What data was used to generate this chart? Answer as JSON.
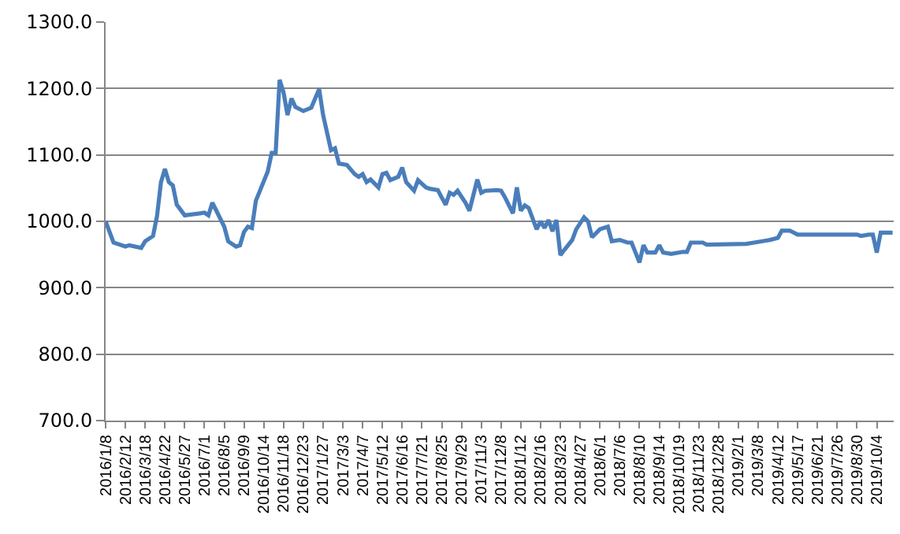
{
  "chart_data": {
    "type": "line",
    "x": [
      "2016-01-08",
      "2016-01-22",
      "2016-02-12",
      "2016-02-19",
      "2016-03-11",
      "2016-03-18",
      "2016-04-01",
      "2016-04-08",
      "2016-04-15",
      "2016-04-22",
      "2016-04-29",
      "2016-05-06",
      "2016-05-13",
      "2016-05-27",
      "2016-07-01",
      "2016-07-08",
      "2016-07-15",
      "2016-07-22",
      "2016-08-05",
      "2016-08-12",
      "2016-08-26",
      "2016-09-02",
      "2016-09-09",
      "2016-09-16",
      "2016-09-23",
      "2016-09-30",
      "2016-10-21",
      "2016-10-28",
      "2016-11-04",
      "2016-11-11",
      "2016-11-18",
      "2016-11-25",
      "2016-12-02",
      "2016-12-09",
      "2016-12-23",
      "2017-01-06",
      "2017-01-20",
      "2017-01-27",
      "2017-02-10",
      "2017-02-17",
      "2017-02-24",
      "2017-03-10",
      "2017-03-24",
      "2017-03-31",
      "2017-04-07",
      "2017-04-14",
      "2017-04-21",
      "2017-05-05",
      "2017-05-12",
      "2017-05-19",
      "2017-05-26",
      "2017-06-09",
      "2017-06-16",
      "2017-06-23",
      "2017-07-07",
      "2017-07-14",
      "2017-07-28",
      "2017-08-04",
      "2017-08-18",
      "2017-08-25",
      "2017-09-01",
      "2017-09-08",
      "2017-09-15",
      "2017-09-22",
      "2017-10-06",
      "2017-10-13",
      "2017-10-27",
      "2017-11-03",
      "2017-11-10",
      "2017-12-01",
      "2017-12-08",
      "2017-12-15",
      "2017-12-29",
      "2018-01-05",
      "2018-01-12",
      "2018-01-19",
      "2018-01-26",
      "2018-02-09",
      "2018-02-16",
      "2018-02-23",
      "2018-03-02",
      "2018-03-09",
      "2018-03-16",
      "2018-03-23",
      "2018-03-30",
      "2018-04-13",
      "2018-04-20",
      "2018-05-04",
      "2018-05-11",
      "2018-05-18",
      "2018-06-01",
      "2018-06-15",
      "2018-06-22",
      "2018-07-06",
      "2018-07-20",
      "2018-07-27",
      "2018-08-03",
      "2018-08-10",
      "2018-08-17",
      "2018-08-24",
      "2018-09-07",
      "2018-09-14",
      "2018-09-21",
      "2018-10-05",
      "2018-10-26",
      "2018-11-02",
      "2018-11-09",
      "2018-11-30",
      "2018-12-07",
      "2019-02-15",
      "2019-03-01",
      "2019-03-22",
      "2019-03-29",
      "2019-04-12",
      "2019-04-19",
      "2019-05-03",
      "2019-05-17",
      "2019-08-30",
      "2019-09-06",
      "2019-09-20",
      "2019-09-27",
      "2019-10-04",
      "2019-10-11",
      "2019-11-01"
    ],
    "series": [
      {
        "color": "#4a7ebb",
        "values": [
          1000,
          968,
          962,
          964,
          960,
          970,
          978,
          1008,
          1059,
          1079,
          1059,
          1054,
          1025,
          1009,
          1013,
          1009,
          1028,
          1016,
          992,
          970,
          962,
          964,
          984,
          992,
          990,
          1031,
          1075,
          1103,
          1103,
          1213,
          1194,
          1160,
          1185,
          1172,
          1166,
          1171,
          1199,
          1160,
          1107,
          1110,
          1087,
          1085,
          1071,
          1067,
          1071,
          1059,
          1063,
          1051,
          1071,
          1073,
          1062,
          1067,
          1081,
          1059,
          1046,
          1062,
          1051,
          1049,
          1047,
          1036,
          1025,
          1043,
          1040,
          1046,
          1028,
          1016,
          1063,
          1043,
          1046,
          1047,
          1046,
          1036,
          1012,
          1051,
          1016,
          1024,
          1020,
          988,
          1000,
          990,
          1002,
          985,
          1002,
          949,
          957,
          972,
          988,
          1006,
          1000,
          976,
          988,
          992,
          970,
          972,
          968,
          968,
          953,
          938,
          964,
          953,
          953,
          964,
          953,
          951,
          954,
          954,
          968,
          968,
          965,
          966,
          968,
          971,
          972,
          975,
          986,
          986,
          980,
          980,
          978,
          980,
          980,
          953,
          983,
          983
        ]
      }
    ],
    "xlim": [
      "2016-01-08",
      "2019-11-03"
    ],
    "xticks": [
      {
        "value": "2016-01-08",
        "label": "2016/1/8"
      },
      {
        "value": "2016-02-12",
        "label": "2016/2/12"
      },
      {
        "value": "2016-03-18",
        "label": "2016/3/18"
      },
      {
        "value": "2016-04-22",
        "label": "2016/4/22"
      },
      {
        "value": "2016-05-27",
        "label": "2016/5/27"
      },
      {
        "value": "2016-07-01",
        "label": "2016/7/1"
      },
      {
        "value": "2016-08-05",
        "label": "2016/8/5"
      },
      {
        "value": "2016-09-09",
        "label": "2016/9/9"
      },
      {
        "value": "2016-10-14",
        "label": "2016/10/14"
      },
      {
        "value": "2016-11-18",
        "label": "2016/11/18"
      },
      {
        "value": "2016-12-23",
        "label": "2016/12/23"
      },
      {
        "value": "2017-01-27",
        "label": "2017/1/27"
      },
      {
        "value": "2017-03-03",
        "label": "2017/3/3"
      },
      {
        "value": "2017-04-07",
        "label": "2017/4/7"
      },
      {
        "value": "2017-05-12",
        "label": "2017/5/12"
      },
      {
        "value": "2017-06-16",
        "label": "2017/6/16"
      },
      {
        "value": "2017-07-21",
        "label": "2017/7/21"
      },
      {
        "value": "2017-08-25",
        "label": "2017/8/25"
      },
      {
        "value": "2017-09-29",
        "label": "2017/9/29"
      },
      {
        "value": "2017-11-03",
        "label": "2017/11/3"
      },
      {
        "value": "2017-12-08",
        "label": "2017/12/8"
      },
      {
        "value": "2018-01-12",
        "label": "2018/1/12"
      },
      {
        "value": "2018-02-16",
        "label": "2018/2/16"
      },
      {
        "value": "2018-03-23",
        "label": "2018/3/23"
      },
      {
        "value": "2018-04-27",
        "label": "2018/4/27"
      },
      {
        "value": "2018-06-01",
        "label": "2018/6/1"
      },
      {
        "value": "2018-07-06",
        "label": "2018/7/6"
      },
      {
        "value": "2018-08-10",
        "label": "2018/8/10"
      },
      {
        "value": "2018-09-14",
        "label": "2018/9/14"
      },
      {
        "value": "2018-10-19",
        "label": "2018/10/19"
      },
      {
        "value": "2018-11-23",
        "label": "2018/11/23"
      },
      {
        "value": "2018-12-28",
        "label": "2018/12/28"
      },
      {
        "value": "2019-02-01",
        "label": "2019/2/1"
      },
      {
        "value": "2019-03-08",
        "label": "2019/3/8"
      },
      {
        "value": "2019-04-12",
        "label": "2019/4/12"
      },
      {
        "value": "2019-05-17",
        "label": "2019/5/17"
      },
      {
        "value": "2019-06-21",
        "label": "2019/6/21"
      },
      {
        "value": "2019-07-26",
        "label": "2019/7/26"
      },
      {
        "value": "2019-08-30",
        "label": "2019/8/30"
      },
      {
        "value": "2019-10-04",
        "label": "2019/10/4"
      }
    ],
    "ylim": [
      700,
      1300
    ],
    "yticks": [
      {
        "value": 700,
        "label": "700.0"
      },
      {
        "value": 800,
        "label": "800.0"
      },
      {
        "value": 900,
        "label": "900.0"
      },
      {
        "value": 1000,
        "label": "1000.0"
      },
      {
        "value": 1100,
        "label": "1100.0"
      },
      {
        "value": 1200,
        "label": "1200.0"
      },
      {
        "value": 1300,
        "label": "1300.0"
      }
    ],
    "grid": "y"
  }
}
